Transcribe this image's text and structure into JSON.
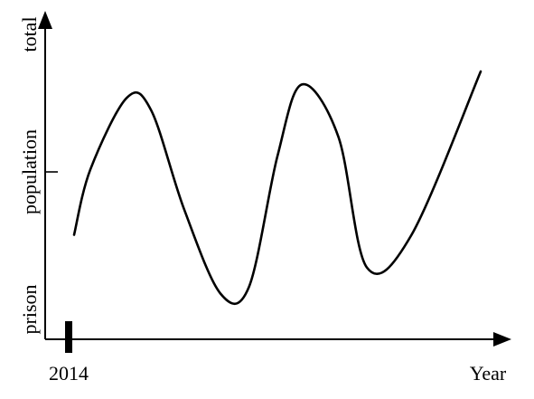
{
  "chart_data": {
    "type": "line",
    "title": "",
    "xlabel": "Year",
    "ylabel": "total prison population",
    "ylabel_words": [
      "prison",
      "population",
      "total"
    ],
    "x_tick_labels": [
      "2014"
    ],
    "series": [
      {
        "values_note_free": true,
        "points": [
          {
            "x": 0.0,
            "y": 0.32
          },
          {
            "x": 0.04,
            "y": 0.52
          },
          {
            "x": 0.13,
            "y": 0.74
          },
          {
            "x": 0.19,
            "y": 0.7
          },
          {
            "x": 0.27,
            "y": 0.4
          },
          {
            "x": 0.36,
            "y": 0.14
          },
          {
            "x": 0.43,
            "y": 0.16
          },
          {
            "x": 0.5,
            "y": 0.56
          },
          {
            "x": 0.56,
            "y": 0.78
          },
          {
            "x": 0.65,
            "y": 0.62
          },
          {
            "x": 0.72,
            "y": 0.22
          },
          {
            "x": 0.83,
            "y": 0.32
          },
          {
            "x": 1.0,
            "y": 0.82
          }
        ]
      }
    ],
    "xlim": [
      0,
      1
    ],
    "ylim": [
      0,
      1
    ],
    "grid": false,
    "legend": "none",
    "colors": {
      "line": "#000000",
      "axis": "#000000"
    }
  }
}
